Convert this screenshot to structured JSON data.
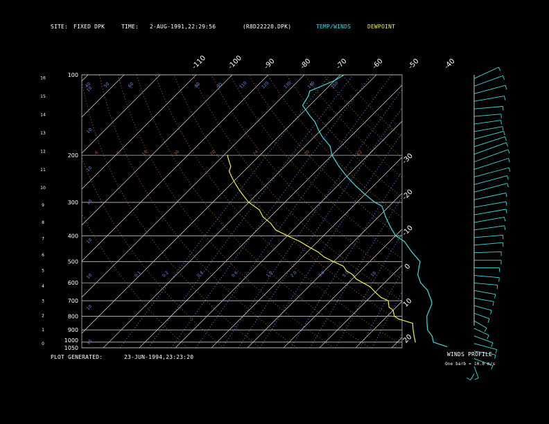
{
  "header": {
    "site_label": "SITE:",
    "site_value": "FIXED DPK",
    "time_label": "TIME:",
    "time_value": "2-AUG-1991,22:29:56",
    "file": "(R8D22220.DPK)",
    "temp_legend": "TEMP/WINDS",
    "dew_legend": "DEWPOINT"
  },
  "footer": {
    "generated_label": "PLOT GENERATED:",
    "generated_value": "23-JUN-1994,23:23:20"
  },
  "wind_panel": {
    "title": "WINDS PROFILE",
    "note": "One barb = 10.0 m/s"
  },
  "colors": {
    "temp": "#33e0e0",
    "dewpoint": "#f2f23a",
    "grid": "#bfbfbf",
    "mixing_ratio": "#6f8fff",
    "dry_adiabat": "#c0602a",
    "axis_text": "#ffffff"
  },
  "chart_data": {
    "type": "line",
    "title": "",
    "pressure_ticks": [
      "100",
      "200",
      "300",
      "400",
      "500",
      "600",
      "700",
      "800",
      "900",
      "1000",
      "1050"
    ],
    "height_ticks": [
      "0",
      "1",
      "2",
      "3",
      "4",
      "5",
      "6",
      "7",
      "8",
      "9",
      "10",
      "11",
      "12",
      "13",
      "14",
      "15",
      "16"
    ],
    "top_temp_ticks": [
      "-110",
      "-100",
      "-90",
      "-80",
      "-70",
      "-60",
      "-50",
      "-40"
    ],
    "right_temp_ticks": [
      "-30",
      "-20",
      "-10",
      "0",
      "10",
      "20",
      "30"
    ],
    "mixing_ratio_labels": [
      "10",
      "5.0",
      "3.0",
      "2.0",
      "1.0",
      "0.6",
      "0.4",
      "0.2",
      "0.1"
    ],
    "adiabat_labels": [
      "-6",
      "6",
      "18",
      "30",
      "70",
      "74",
      "20",
      "62"
    ],
    "upper_labels": [
      "95",
      "110",
      "120",
      "130",
      "140",
      "150",
      "60",
      "50",
      "40",
      "80"
    ],
    "grid": true,
    "series": [
      {
        "name": "TEMP/WINDS",
        "pressure_hpa": [
          1040,
          1000,
          950,
          900,
          850,
          800,
          760,
          720,
          700,
          670,
          640,
          600,
          560,
          520,
          500,
          460,
          420,
          400,
          370,
          340,
          310,
          300,
          280,
          260,
          240,
          220,
          200,
          185,
          170,
          160,
          150,
          145,
          140,
          130,
          120,
          115,
          110,
          105,
          100
        ],
        "temp_c": [
          35,
          30,
          28,
          25,
          23,
          21,
          20,
          19,
          18,
          16,
          14,
          10,
          7,
          5,
          4,
          -1,
          -6,
          -10,
          -14,
          -18,
          -22,
          -25,
          -30,
          -35,
          -40,
          -45,
          -50,
          -53,
          -58,
          -61,
          -64,
          -66,
          -68,
          -72,
          -73,
          -74,
          -72,
          -70,
          -69
        ]
      },
      {
        "name": "DEWPOINT",
        "pressure_hpa": [
          1000,
          950,
          900,
          850,
          820,
          800,
          780,
          760,
          740,
          720,
          700,
          680,
          660,
          640,
          620,
          600,
          580,
          560,
          540,
          520,
          500,
          480,
          460,
          440,
          420,
          400,
          380,
          360,
          340,
          320,
          300,
          290,
          280,
          270,
          260,
          250,
          240,
          230,
          220,
          210,
          205,
          200
        ],
        "dewpoint_c": [
          25,
          23,
          21,
          19,
          14,
          12,
          11,
          10,
          8,
          7,
          6,
          3,
          1,
          -1,
          -3,
          -6,
          -9,
          -11,
          -14,
          -16,
          -20,
          -24,
          -27,
          -31,
          -35,
          -40,
          -45,
          -48,
          -52,
          -55,
          -60,
          -62,
          -64,
          -66,
          -68,
          -70,
          -72,
          -74,
          -75,
          -77,
          -78,
          -79
        ]
      }
    ],
    "wind_profile": {
      "height_km": [
        0.2,
        0.6,
        1.0,
        1.4,
        1.8,
        2.2,
        2.6,
        3.0,
        3.4,
        3.8,
        4.2,
        4.6,
        5.0,
        5.4,
        5.8,
        6.2,
        6.6,
        7.0,
        7.4,
        7.8,
        8.2,
        8.6,
        9.0,
        9.4,
        9.8,
        10.2,
        10.6,
        11.0,
        11.4,
        11.8,
        12.2,
        12.6,
        13.0,
        13.4,
        13.8,
        14.2,
        14.6,
        15.0,
        15.4,
        15.8
      ],
      "speed_ms": [
        8,
        14,
        22,
        24,
        26,
        22,
        18,
        16,
        18,
        20,
        22,
        24,
        26,
        28,
        28,
        30,
        30,
        32,
        32,
        34,
        34,
        36,
        36,
        36,
        38,
        38,
        40,
        40,
        40,
        38,
        36,
        34,
        32,
        30,
        30,
        32,
        34,
        36,
        34,
        30
      ],
      "direction_deg": [
        150,
        200,
        250,
        260,
        255,
        250,
        245,
        240,
        250,
        255,
        260,
        260,
        265,
        265,
        270,
        270,
        272,
        275,
        275,
        278,
        280,
        280,
        280,
        282,
        285,
        285,
        285,
        288,
        290,
        290,
        288,
        285,
        280,
        278,
        275,
        275,
        280,
        285,
        290,
        295
      ]
    }
  }
}
